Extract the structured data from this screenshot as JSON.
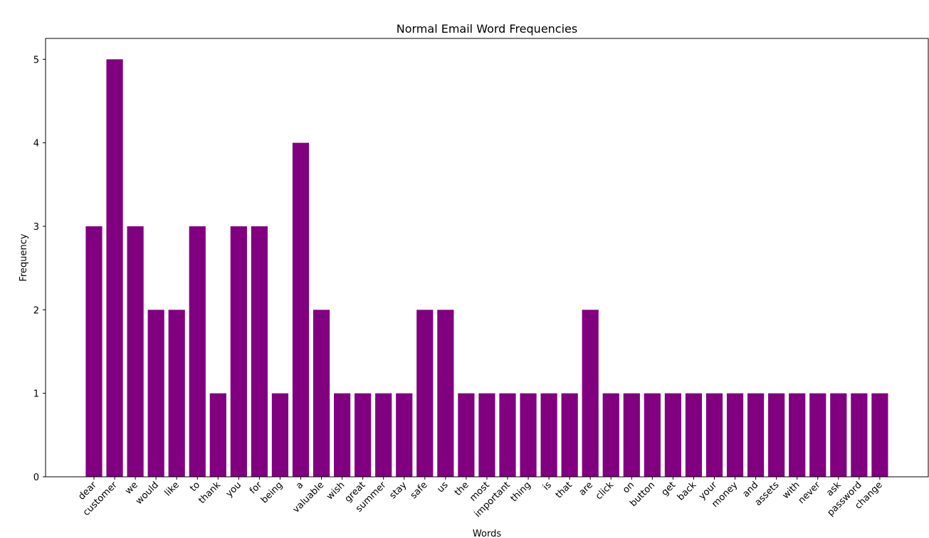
{
  "chart_data": {
    "type": "bar",
    "title": "Normal Email Word Frequencies",
    "xlabel": "Words",
    "ylabel": "Frequency",
    "ylim": [
      0,
      5.25
    ],
    "yticks": [
      0,
      1,
      2,
      3,
      4,
      5
    ],
    "grid": false,
    "bar_color": "#800080",
    "categories": [
      "dear",
      "customer",
      "we",
      "would",
      "like",
      "to",
      "thank",
      "you",
      "for",
      "being",
      "a",
      "valuable",
      "wish",
      "great",
      "summer",
      "stay",
      "safe",
      "us",
      "the",
      "most",
      "important",
      "thing",
      "is",
      "that",
      "are",
      "click",
      "on",
      "button",
      "get",
      "back",
      "your",
      "money",
      "and",
      "assets",
      "with",
      "never",
      "ask",
      "password",
      "change"
    ],
    "values": [
      3,
      5,
      3,
      2,
      2,
      3,
      1,
      3,
      3,
      1,
      4,
      2,
      1,
      1,
      1,
      1,
      2,
      2,
      1,
      1,
      1,
      1,
      1,
      1,
      2,
      1,
      1,
      1,
      1,
      1,
      1,
      1,
      1,
      1,
      1,
      1,
      1,
      1,
      1
    ]
  }
}
